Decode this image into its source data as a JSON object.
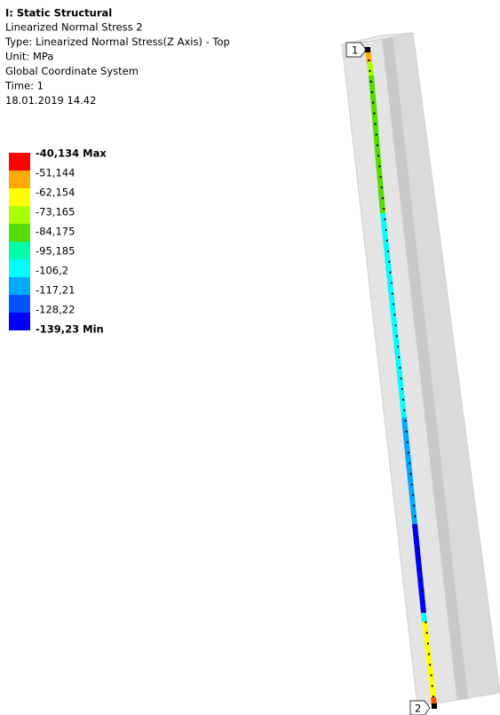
{
  "header": {
    "title": "I: Static Structural",
    "lines": [
      "Linearized Normal Stress 2",
      "Type: Linearized Normal Stress(Z Axis) - Top",
      "Unit: MPa",
      "Global Coordinate System",
      "Time: 1",
      "18.01.2019 14.42"
    ]
  },
  "legend": {
    "items": [
      {
        "label": "-40,134 Max",
        "color": "#ff0000"
      },
      {
        "label": "-51,144",
        "color": "#ffaa00"
      },
      {
        "label": "-62,154",
        "color": "#ffff00"
      },
      {
        "label": "-73,165",
        "color": "#aaff00"
      },
      {
        "label": "-84,175",
        "color": "#55dd00"
      },
      {
        "label": "-95,185",
        "color": "#00ffaa"
      },
      {
        "label": "-106,2",
        "color": "#00ffff"
      },
      {
        "label": "-117,21",
        "color": "#00aaff"
      },
      {
        "label": "-128,22",
        "color": "#0055ff"
      },
      {
        "label": "-139,23 Min",
        "color": "#0000ff"
      }
    ]
  },
  "probes": {
    "start": "1",
    "end": "2"
  }
}
